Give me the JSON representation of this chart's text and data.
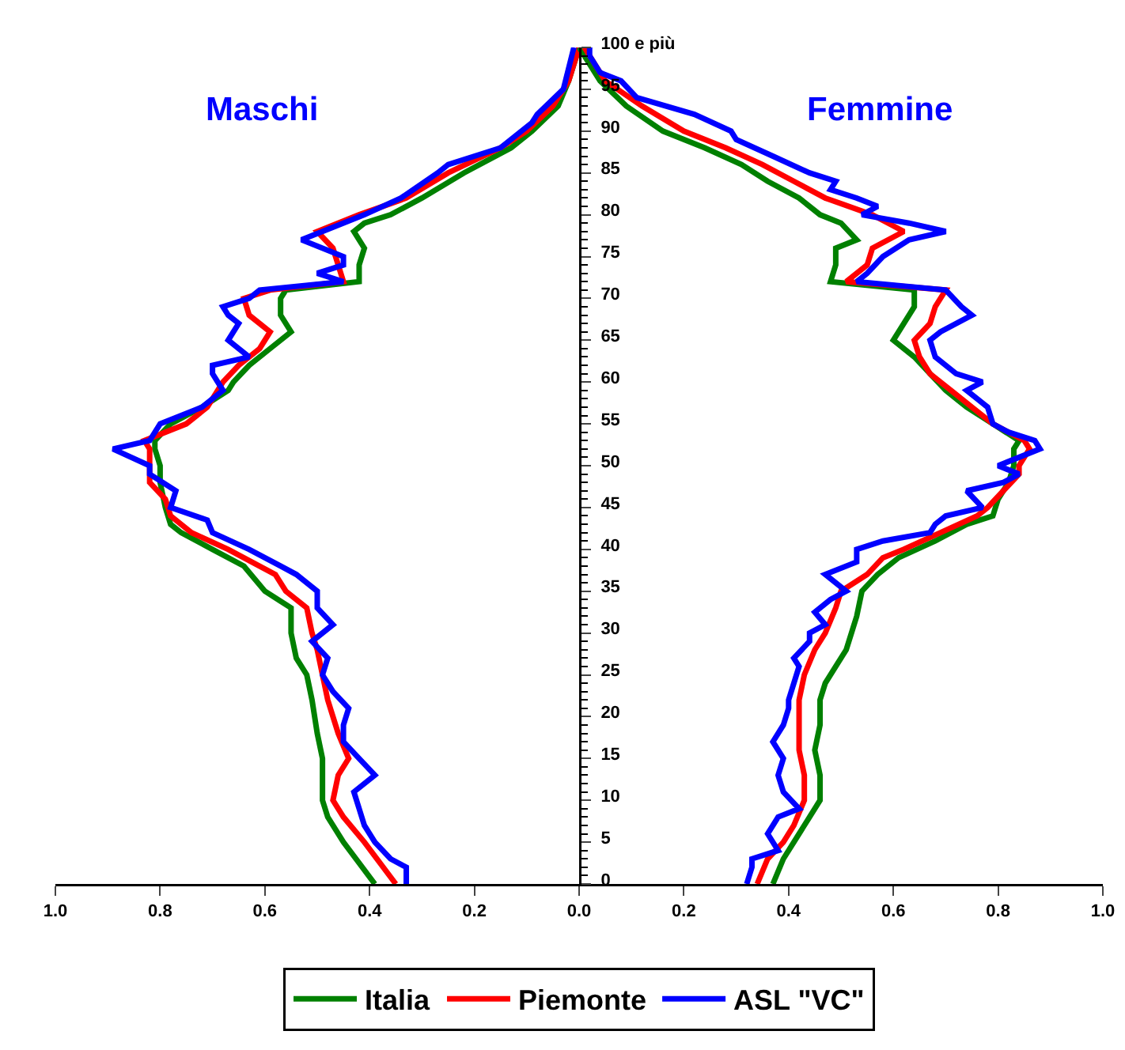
{
  "chart_data": {
    "type": "line",
    "xlim": [
      -1,
      1
    ],
    "xticks": [
      {
        "value": -1,
        "label": "1.0"
      },
      {
        "value": -0.8,
        "label": "0.8"
      },
      {
        "value": -0.6,
        "label": "0.6"
      },
      {
        "value": -0.4,
        "label": "0.4"
      },
      {
        "value": -0.2,
        "label": "0.2"
      },
      {
        "value": 0,
        "label": "0.0"
      },
      {
        "value": 0.2,
        "label": "0.2"
      },
      {
        "value": 0.4,
        "label": "0.4"
      },
      {
        "value": 0.6,
        "label": "0.6"
      },
      {
        "value": 0.8,
        "label": "0.8"
      },
      {
        "value": 1,
        "label": "1.0"
      }
    ],
    "ylim": [
      0,
      100
    ],
    "yticks": [
      0,
      5,
      10,
      15,
      20,
      25,
      30,
      35,
      40,
      45,
      50,
      55,
      60,
      65,
      70,
      75,
      80,
      85,
      90,
      95,
      {
        "value": 100,
        "label": "100 e più"
      }
    ],
    "grid": false,
    "legend": "bottom",
    "marker": "none",
    "line_style": "solid",
    "annotations": [
      "Maschi",
      "Femmine"
    ],
    "series": [
      {
        "name": "Italia",
        "color": "#008000",
        "x": [
          -0.39,
          -0.45,
          -0.48,
          -0.49,
          -0.49,
          -0.5,
          -0.51,
          -0.52,
          -0.54,
          -0.55,
          -0.55,
          -0.6,
          -0.64,
          -0.7,
          -0.76,
          -0.78,
          -0.79,
          -0.8,
          -0.8,
          -0.81,
          -0.81,
          -0.78,
          -0.72,
          -0.67,
          -0.66,
          -0.63,
          -0.59,
          -0.55,
          -0.57,
          -0.57,
          -0.56,
          -0.42,
          -0.42,
          -0.41,
          -0.43,
          -0.41,
          -0.36,
          -0.3,
          -0.22,
          -0.13,
          -0.09,
          -0.04,
          -0.02,
          0
        ],
        "values": [
          0,
          5,
          8,
          10,
          15,
          18,
          22,
          25,
          27,
          30,
          33,
          35,
          38,
          40,
          42,
          43,
          45,
          48,
          50,
          52,
          53,
          55,
          57,
          59,
          60,
          62,
          64,
          66,
          68,
          70,
          71,
          72,
          74,
          76,
          78,
          79,
          80,
          82,
          85,
          88,
          90,
          93,
          96,
          100
        ]
      },
      {
        "name": "Piemonte",
        "color": "#ff0000",
        "x": [
          -0.35,
          -0.41,
          -0.45,
          -0.47,
          -0.46,
          -0.44,
          -0.46,
          -0.47,
          -0.48,
          -0.49,
          -0.5,
          -0.51,
          -0.52,
          -0.56,
          -0.58,
          -0.67,
          -0.74,
          -0.78,
          -0.79,
          -0.82,
          -0.82,
          -0.82,
          -0.83,
          -0.75,
          -0.71,
          -0.68,
          -0.65,
          -0.61,
          -0.59,
          -0.63,
          -0.64,
          -0.59,
          -0.45,
          -0.46,
          -0.47,
          -0.5,
          -0.42,
          -0.33,
          -0.25,
          -0.15,
          -0.1,
          -0.05,
          -0.02,
          0
        ],
        "values": [
          0,
          5,
          8,
          10,
          13,
          15,
          18,
          20,
          22,
          25,
          28,
          30,
          33,
          35,
          37,
          40,
          42,
          44,
          46,
          48,
          50,
          52,
          53,
          55,
          57,
          60,
          62,
          64,
          66,
          68,
          70,
          71,
          72,
          74,
          76,
          78,
          80,
          82,
          85,
          88,
          90,
          93,
          96,
          100
        ]
      },
      {
        "name": "ASL \"VC\"",
        "color": "#0000ff",
        "x": [
          -0.33,
          -0.33,
          -0.36,
          -0.39,
          -0.41,
          -0.42,
          -0.43,
          -0.39,
          -0.42,
          -0.45,
          -0.45,
          -0.44,
          -0.47,
          -0.49,
          -0.48,
          -0.51,
          -0.47,
          -0.5,
          -0.5,
          -0.54,
          -0.57,
          -0.63,
          -0.7,
          -0.71,
          -0.78,
          -0.77,
          -0.82,
          -0.82,
          -0.89,
          -0.82,
          -0.8,
          -0.72,
          -0.68,
          -0.7,
          -0.7,
          -0.63,
          -0.67,
          -0.65,
          -0.67,
          -0.68,
          -0.63,
          -0.61,
          -0.45,
          -0.5,
          -0.45,
          -0.45,
          -0.53,
          -0.49,
          -0.41,
          -0.34,
          -0.27,
          -0.25,
          -0.15,
          -0.09,
          -0.08,
          -0.03,
          -0.01
        ],
        "values": [
          0,
          2,
          3,
          5,
          7,
          9,
          11,
          13,
          15,
          17,
          19,
          21,
          23,
          25,
          27,
          29,
          31,
          33,
          35,
          37,
          38,
          40,
          42,
          43.5,
          45,
          47,
          49,
          50,
          52,
          53,
          55,
          57,
          59,
          61,
          62,
          63,
          65,
          67,
          68,
          69,
          70,
          71,
          72,
          73,
          74,
          75,
          77,
          78,
          80,
          82,
          85,
          86,
          88,
          91,
          92,
          95,
          100
        ]
      },
      {
        "color": "#008000",
        "x": [
          0.37,
          0.39,
          0.41,
          0.44,
          0.46,
          0.46,
          0.45,
          0.46,
          0.46,
          0.47,
          0.49,
          0.51,
          0.52,
          0.53,
          0.54,
          0.57,
          0.61,
          0.68,
          0.74,
          0.79,
          0.8,
          0.82,
          0.83,
          0.83,
          0.84,
          0.79,
          0.74,
          0.7,
          0.67,
          0.64,
          0.6,
          0.62,
          0.64,
          0.64,
          0.48,
          0.49,
          0.49,
          0.53,
          0.5,
          0.46,
          0.42,
          0.36,
          0.31,
          0.24,
          0.16,
          0.09,
          0.04,
          0
        ],
        "values": [
          0,
          3,
          5,
          8,
          10,
          13,
          16,
          19,
          22,
          24,
          26,
          28,
          30,
          32,
          35,
          37,
          39,
          41,
          43,
          44,
          46,
          48,
          50,
          52,
          53,
          55,
          57,
          59,
          61,
          63,
          65,
          67,
          69,
          71,
          72,
          74,
          76,
          77,
          79,
          80,
          82,
          84,
          86,
          88,
          90,
          93,
          96,
          100
        ]
      },
      {
        "color": "#ff0000",
        "x": [
          0.34,
          0.36,
          0.39,
          0.41,
          0.43,
          0.43,
          0.42,
          0.42,
          0.42,
          0.43,
          0.45,
          0.47,
          0.49,
          0.5,
          0.55,
          0.58,
          0.62,
          0.69,
          0.76,
          0.78,
          0.81,
          0.84,
          0.84,
          0.86,
          0.85,
          0.79,
          0.75,
          0.71,
          0.67,
          0.65,
          0.64,
          0.67,
          0.68,
          0.7,
          0.51,
          0.55,
          0.56,
          0.62,
          0.56,
          0.47,
          0.41,
          0.35,
          0.28,
          0.2,
          0.12,
          0.05,
          0.01
        ],
        "values": [
          0,
          3,
          5,
          7,
          10,
          13,
          16,
          19,
          22,
          25,
          28,
          30,
          33,
          35,
          37,
          39,
          40,
          42,
          44,
          45,
          47,
          49,
          50,
          52,
          53,
          55,
          57,
          59,
          61,
          63,
          65,
          67,
          69,
          71,
          72,
          74,
          76,
          78,
          80,
          82,
          84,
          86,
          88,
          90,
          93,
          96,
          100
        ]
      },
      {
        "color": "#0000ff",
        "x": [
          0.32,
          0.33,
          0.33,
          0.38,
          0.36,
          0.38,
          0.42,
          0.39,
          0.38,
          0.39,
          0.37,
          0.39,
          0.4,
          0.4,
          0.41,
          0.42,
          0.41,
          0.44,
          0.44,
          0.47,
          0.45,
          0.48,
          0.51,
          0.47,
          0.53,
          0.53,
          0.58,
          0.67,
          0.68,
          0.7,
          0.77,
          0.74,
          0.81,
          0.84,
          0.8,
          0.88,
          0.87,
          0.82,
          0.79,
          0.78,
          0.74,
          0.77,
          0.72,
          0.68,
          0.67,
          0.69,
          0.75,
          0.73,
          0.7,
          0.53,
          0.55,
          0.58,
          0.63,
          0.7,
          0.63,
          0.54,
          0.57,
          0.53,
          0.48,
          0.49,
          0.44,
          0.37,
          0.3,
          0.29,
          0.22,
          0.11,
          0.08,
          0.04,
          0.02,
          0.02
        ],
        "values": [
          0,
          2,
          3,
          4,
          6,
          8,
          9,
          11,
          13,
          15,
          17,
          19,
          21,
          22,
          24,
          26,
          27,
          29,
          30,
          31,
          32.5,
          34,
          35,
          37,
          38.5,
          40,
          41,
          42,
          43,
          44,
          45,
          47,
          48,
          49,
          50,
          52,
          53,
          54,
          55,
          57,
          59,
          60,
          61,
          63,
          65,
          66,
          68,
          69,
          71,
          72,
          73,
          75,
          77,
          78,
          79,
          80,
          81,
          82,
          83,
          84,
          85,
          87,
          89,
          90,
          92,
          94,
          96,
          97,
          99,
          100
        ]
      }
    ]
  }
}
